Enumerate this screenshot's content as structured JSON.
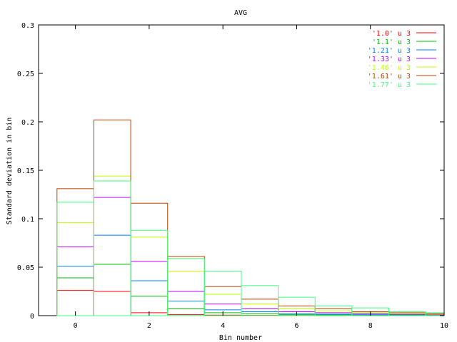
{
  "chart_data": {
    "type": "histogram-step",
    "title": "AVG",
    "xlabel": "Bin number",
    "ylabel": "Standard deviation in bin",
    "xlim": [
      -1,
      10
    ],
    "ylim": [
      0,
      0.3
    ],
    "xticks": [
      "0",
      "2",
      "4",
      "6",
      "8",
      "10"
    ],
    "yticks": [
      "0",
      "0.05",
      "0.1",
      "0.15",
      "0.2",
      "0.25",
      "0.3"
    ],
    "bins": [
      0,
      1,
      2,
      3,
      4,
      5,
      6,
      7,
      8,
      9,
      10
    ],
    "legend_position": "top-right",
    "series": [
      {
        "name": "'1.0' u 3",
        "color": "#ff0000",
        "values": [
          0.026,
          0.025,
          0.003,
          0.001,
          0.0005,
          0.0003,
          0.0002,
          0.0001,
          0.0001,
          0.0001,
          0.0001
        ]
      },
      {
        "name": "'1.1' u 3",
        "color": "#00c000",
        "values": [
          0.039,
          0.053,
          0.02,
          0.007,
          0.003,
          0.002,
          0.001,
          0.0008,
          0.0005,
          0.0004,
          0.0003
        ]
      },
      {
        "name": "'1.21' u 3",
        "color": "#0080ff",
        "values": [
          0.051,
          0.083,
          0.036,
          0.015,
          0.006,
          0.004,
          0.002,
          0.0015,
          0.001,
          0.0008,
          0.0005
        ]
      },
      {
        "name": "'1.33' u 3",
        "color": "#c000ff",
        "values": [
          0.071,
          0.122,
          0.056,
          0.025,
          0.012,
          0.007,
          0.004,
          0.003,
          0.002,
          0.0015,
          0.001
        ]
      },
      {
        "name": "'1.46' u 3",
        "color": "#c0ff00",
        "values": [
          0.096,
          0.144,
          0.081,
          0.046,
          0.022,
          0.012,
          0.007,
          0.005,
          0.003,
          0.002,
          0.0015
        ]
      },
      {
        "name": "'1.61' u 3",
        "color": "#c04000",
        "values": [
          0.131,
          0.202,
          0.116,
          0.061,
          0.03,
          0.017,
          0.01,
          0.007,
          0.004,
          0.003,
          0.002
        ]
      },
      {
        "name": "'1.77' u 3",
        "color": "#40ff80",
        "values": [
          0.117,
          0.139,
          0.088,
          0.059,
          0.046,
          0.031,
          0.019,
          0.01,
          0.008,
          0.004,
          0.003
        ]
      }
    ]
  }
}
